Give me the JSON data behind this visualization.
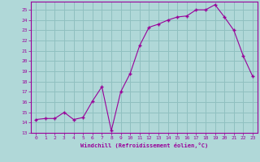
{
  "x": [
    0,
    1,
    2,
    3,
    4,
    5,
    6,
    7,
    8,
    9,
    10,
    11,
    12,
    13,
    14,
    15,
    16,
    17,
    18,
    19,
    20,
    21,
    22,
    23
  ],
  "y": [
    14.3,
    14.4,
    14.4,
    15.0,
    14.3,
    14.5,
    16.1,
    17.5,
    13.2,
    17.0,
    18.8,
    21.5,
    23.3,
    23.6,
    24.0,
    24.3,
    24.4,
    25.0,
    25.0,
    25.5,
    24.3,
    23.0,
    20.5,
    18.5
  ],
  "line_color": "#990099",
  "marker_color": "#990099",
  "bg_color": "#b0d8d8",
  "grid_color": "#90c0c0",
  "xlabel": "Windchill (Refroidissement éolien,°C)",
  "xlim": [
    -0.5,
    23.5
  ],
  "ylim": [
    13,
    25.8
  ],
  "yticks": [
    13,
    14,
    15,
    16,
    17,
    18,
    19,
    20,
    21,
    22,
    23,
    24,
    25
  ],
  "xticks": [
    0,
    1,
    2,
    3,
    4,
    5,
    6,
    7,
    8,
    9,
    10,
    11,
    12,
    13,
    14,
    15,
    16,
    17,
    18,
    19,
    20,
    21,
    22,
    23
  ],
  "xtick_labels": [
    "0",
    "1",
    "2",
    "3",
    "4",
    "5",
    "6",
    "7",
    "8",
    "9",
    "10",
    "11",
    "12",
    "13",
    "14",
    "15",
    "16",
    "17",
    "18",
    "19",
    "20",
    "21",
    "22",
    "23"
  ],
  "title_color": "#990099",
  "axis_color": "#990099",
  "tick_color": "#990099"
}
